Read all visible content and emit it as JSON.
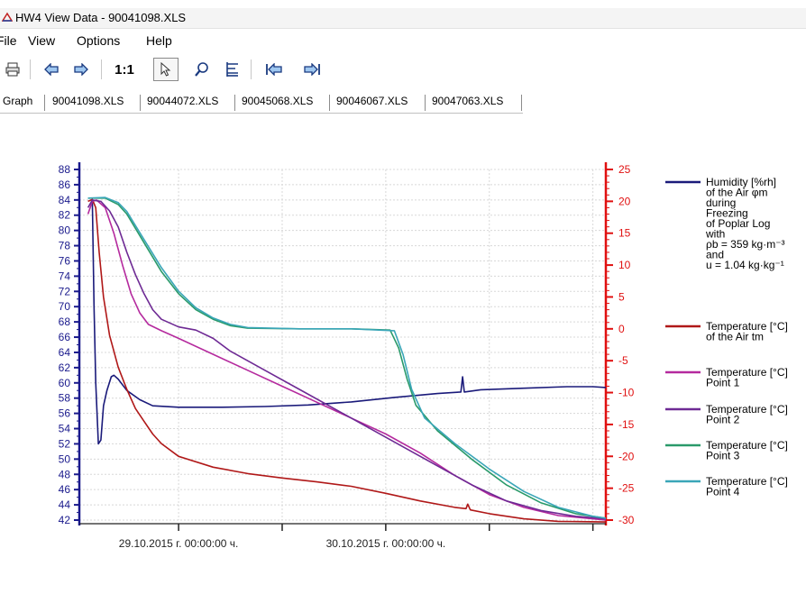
{
  "window": {
    "title": "HW4 View Data - 90041098.XLS"
  },
  "menu": {
    "items": [
      "File",
      "View",
      "Options",
      "Help"
    ]
  },
  "toolbar": {
    "icons": [
      "print-icon",
      "arrow-left-icon",
      "arrow-right-icon",
      "one-to-one-zoom",
      "pointer-icon",
      "magnifier-icon",
      "axis-settings-icon",
      "jump-start-icon",
      "jump-end-icon"
    ],
    "one_to_one_label": "1:1"
  },
  "tabs": [
    "Graph",
    "90041098.XLS",
    "90044072.XLS",
    "90045068.XLS",
    "90046067.XLS",
    "90047063.XLS"
  ],
  "colors": {
    "humidity": "#1a1a7a",
    "air_temp": "#b01818",
    "point1": "#b52a9e",
    "point2": "#6e2a94",
    "point3": "#2a9a6a",
    "point4": "#3aa6b8",
    "left_axis": "#1a1a8c",
    "right_axis": "#e01010"
  },
  "chart_data": {
    "type": "line",
    "grid": true,
    "legend_position": "right",
    "x_axis": {
      "unit": "hours",
      "range": [
        -11.5,
        49.5
      ],
      "tick_labels": [
        {
          "x": 0,
          "label": "29.10.2015 г. 00:00:00 ч."
        },
        {
          "x": 24,
          "label": "30.10.2015 г. 00:00:00 ч."
        }
      ],
      "minor_ticks": [
        12,
        36,
        48
      ]
    },
    "y_left": {
      "range": [
        42,
        88
      ],
      "step": 2,
      "ticks": [
        "42",
        "44",
        "46",
        "48",
        "50",
        "52",
        "54",
        "56",
        "58",
        "60",
        "62",
        "64",
        "66",
        "68",
        "70",
        "72",
        "74",
        "76",
        "78",
        "80",
        "82",
        "84",
        "86",
        "88"
      ]
    },
    "y_right": {
      "range": [
        -30,
        25
      ],
      "step": 5,
      "ticks": [
        "-30",
        "-25",
        "-20",
        "-15",
        "-10",
        "-5",
        "0",
        "5",
        "10",
        "15",
        "20",
        "25"
      ]
    },
    "series": [
      {
        "name": "Humidity",
        "axis": "left",
        "legend": [
          "Humidity [%rh]",
          "of the Air φm",
          "during",
          "Freezing",
          "of Poplar Log",
          "with",
          "ρb = 359 kg·m⁻³",
          "and",
          "u = 1.04 kg·kg⁻¹"
        ],
        "points": [
          [
            -10,
            84
          ],
          [
            -9.8,
            70
          ],
          [
            -9.6,
            60
          ],
          [
            -9.3,
            52
          ],
          [
            -9.0,
            52.5
          ],
          [
            -8.7,
            57
          ],
          [
            -8.3,
            59
          ],
          [
            -7.8,
            60.8
          ],
          [
            -7.5,
            61
          ],
          [
            -7,
            60.5
          ],
          [
            -6,
            59
          ],
          [
            -4.5,
            57.8
          ],
          [
            -3,
            57
          ],
          [
            0,
            56.8
          ],
          [
            5,
            56.8
          ],
          [
            10,
            56.9
          ],
          [
            15,
            57.1
          ],
          [
            20,
            57.5
          ],
          [
            25,
            58.1
          ],
          [
            30,
            58.6
          ],
          [
            32.7,
            58.8
          ],
          [
            32.9,
            60.8
          ],
          [
            33.1,
            58.8
          ],
          [
            35,
            59.1
          ],
          [
            40,
            59.3
          ],
          [
            45,
            59.5
          ],
          [
            48,
            59.5
          ],
          [
            49.5,
            59.4
          ]
        ]
      },
      {
        "name": "Temperature Air",
        "axis": "right",
        "legend": [
          "Temperature [°C]",
          "of the Air tm"
        ],
        "points": [
          [
            -10.5,
            20
          ],
          [
            -10,
            20.3
          ],
          [
            -9.6,
            19
          ],
          [
            -9.2,
            12
          ],
          [
            -8.7,
            5
          ],
          [
            -8,
            -1
          ],
          [
            -7,
            -6
          ],
          [
            -6,
            -9.5
          ],
          [
            -5,
            -12.5
          ],
          [
            -4,
            -14.5
          ],
          [
            -3,
            -16.5
          ],
          [
            -2,
            -18
          ],
          [
            0,
            -20
          ],
          [
            4,
            -21.7
          ],
          [
            8,
            -22.7
          ],
          [
            12,
            -23.4
          ],
          [
            16,
            -24
          ],
          [
            20,
            -24.7
          ],
          [
            24,
            -25.8
          ],
          [
            28,
            -27
          ],
          [
            32,
            -28
          ],
          [
            33.3,
            -28.2
          ],
          [
            33.5,
            -27.5
          ],
          [
            33.8,
            -28.4
          ],
          [
            36,
            -29
          ],
          [
            40,
            -29.8
          ],
          [
            44,
            -30.2
          ],
          [
            49.5,
            -30.3
          ]
        ]
      },
      {
        "name": "Temperature Point 1",
        "axis": "right",
        "legend": [
          "Temperature [°C]",
          "Point 1"
        ],
        "points": [
          [
            -10.5,
            18
          ],
          [
            -10,
            20
          ],
          [
            -9.5,
            20.2
          ],
          [
            -8.5,
            19
          ],
          [
            -7.5,
            15
          ],
          [
            -6.5,
            10
          ],
          [
            -5.5,
            5.5
          ],
          [
            -4.5,
            2.5
          ],
          [
            -3.5,
            0.7
          ],
          [
            -2,
            -0.3
          ],
          [
            0,
            -1.5
          ],
          [
            4,
            -4
          ],
          [
            8,
            -6.5
          ],
          [
            12,
            -9
          ],
          [
            16,
            -11.5
          ],
          [
            20,
            -14
          ],
          [
            24,
            -16.5
          ],
          [
            28,
            -19.5
          ],
          [
            32,
            -23
          ],
          [
            36,
            -26
          ],
          [
            40,
            -28
          ],
          [
            44,
            -29.3
          ],
          [
            49.5,
            -30
          ]
        ]
      },
      {
        "name": "Temperature Point 2",
        "axis": "right",
        "legend": [
          "Temperature [°C]",
          "Point 2"
        ],
        "points": [
          [
            -10.5,
            19
          ],
          [
            -10,
            20.2
          ],
          [
            -9,
            20
          ],
          [
            -8,
            18.5
          ],
          [
            -7,
            16
          ],
          [
            -6,
            12
          ],
          [
            -5,
            8.5
          ],
          [
            -4,
            5.5
          ],
          [
            -3,
            3
          ],
          [
            -2,
            1.5
          ],
          [
            0,
            0.3
          ],
          [
            2,
            -0.2
          ],
          [
            4,
            -1.5
          ],
          [
            6,
            -3.5
          ],
          [
            10,
            -6.5
          ],
          [
            14,
            -9.5
          ],
          [
            18,
            -12.5
          ],
          [
            22,
            -15.5
          ],
          [
            26,
            -18.5
          ],
          [
            30,
            -21.5
          ],
          [
            34,
            -24.5
          ],
          [
            38,
            -27
          ],
          [
            42,
            -28.5
          ],
          [
            46,
            -29.4
          ],
          [
            49.5,
            -29.8
          ]
        ]
      },
      {
        "name": "Temperature Point 3",
        "axis": "right",
        "legend": [
          "Temperature [°C]",
          "Point 3"
        ],
        "points": [
          [
            -10.5,
            20.5
          ],
          [
            -8.5,
            20.5
          ],
          [
            -7,
            19.5
          ],
          [
            -6,
            18
          ],
          [
            -4,
            13.5
          ],
          [
            -2,
            9
          ],
          [
            0,
            5.5
          ],
          [
            2,
            3
          ],
          [
            4,
            1.5
          ],
          [
            6,
            0.5
          ],
          [
            8,
            0.1
          ],
          [
            14,
            0
          ],
          [
            20,
            0
          ],
          [
            24.5,
            -0.2
          ],
          [
            25.5,
            -3
          ],
          [
            26.5,
            -8
          ],
          [
            27.5,
            -12
          ],
          [
            30,
            -16
          ],
          [
            34,
            -20.5
          ],
          [
            38,
            -24.5
          ],
          [
            42,
            -27.3
          ],
          [
            46,
            -29
          ],
          [
            49.5,
            -29.7
          ]
        ]
      },
      {
        "name": "Temperature Point 4",
        "axis": "right",
        "legend": [
          "Temperature [°C]",
          "Point 4"
        ],
        "points": [
          [
            -10.5,
            20.5
          ],
          [
            -8.5,
            20.6
          ],
          [
            -7,
            19.8
          ],
          [
            -6,
            18.4
          ],
          [
            -4,
            14
          ],
          [
            -2,
            9.6
          ],
          [
            0,
            5.9
          ],
          [
            2,
            3.3
          ],
          [
            4,
            1.7
          ],
          [
            6,
            0.7
          ],
          [
            8,
            0.2
          ],
          [
            14,
            0
          ],
          [
            20,
            0
          ],
          [
            25,
            -0.3
          ],
          [
            26,
            -4
          ],
          [
            27,
            -9.5
          ],
          [
            28.5,
            -14
          ],
          [
            32,
            -18
          ],
          [
            36,
            -22
          ],
          [
            40,
            -25.5
          ],
          [
            44,
            -28
          ],
          [
            48,
            -29.4
          ],
          [
            49.5,
            -29.7
          ]
        ]
      }
    ]
  }
}
